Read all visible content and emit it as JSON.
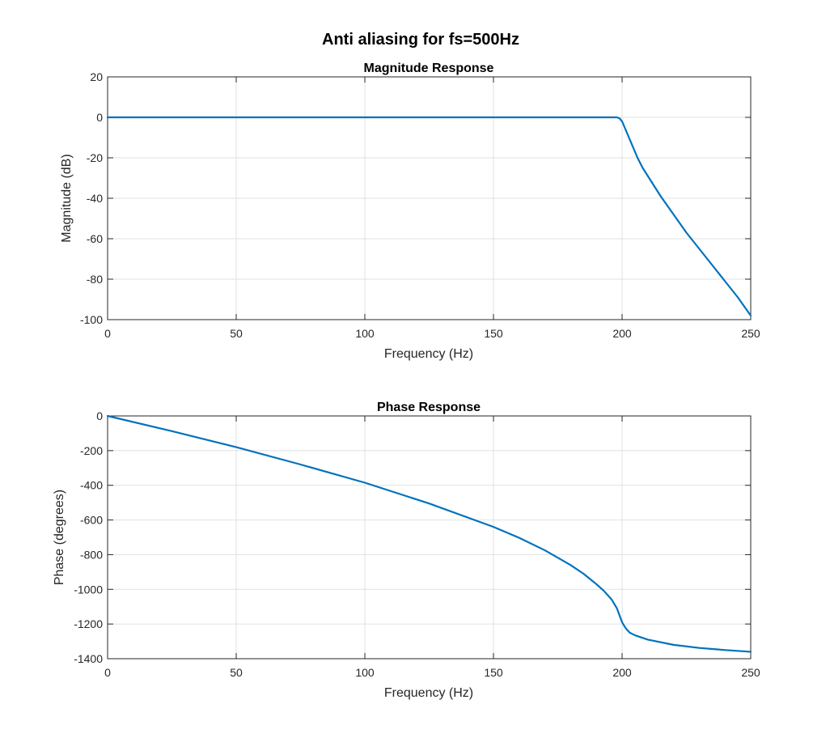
{
  "figure": {
    "title": "Anti aliasing for fs=500Hz"
  },
  "chart_data": [
    {
      "type": "line",
      "title": "Magnitude Response",
      "xlabel": "Frequency (Hz)",
      "ylabel": "Magnitude (dB)",
      "xlim": [
        0,
        250
      ],
      "ylim": [
        -100,
        20
      ],
      "xticks": [
        0,
        50,
        100,
        150,
        200,
        250
      ],
      "yticks": [
        20,
        0,
        -20,
        -40,
        -60,
        -80,
        -100
      ],
      "grid": true,
      "color": "#0072BD",
      "series": [
        {
          "x": [
            0,
            25,
            50,
            75,
            100,
            125,
            150,
            175,
            190,
            195,
            198,
            199,
            200,
            201,
            202,
            204,
            206,
            208,
            210,
            215,
            220,
            225,
            230,
            235,
            240,
            245,
            250
          ],
          "y": [
            0,
            0,
            0,
            0,
            0,
            0,
            0,
            0,
            0,
            0,
            0,
            -0.5,
            -2,
            -5,
            -8,
            -14,
            -20,
            -25,
            -29,
            -39,
            -48,
            -57,
            -65,
            -73,
            -81,
            -89,
            -98
          ]
        }
      ]
    },
    {
      "type": "line",
      "title": "Phase Response",
      "xlabel": "Frequency (Hz)",
      "ylabel": "Phase (degrees)",
      "xlim": [
        0,
        250
      ],
      "ylim": [
        -1400,
        0
      ],
      "xticks": [
        0,
        50,
        100,
        150,
        200,
        250
      ],
      "yticks": [
        0,
        -200,
        -400,
        -600,
        -800,
        -1000,
        -1200,
        -1400
      ],
      "grid": true,
      "color": "#0072BD",
      "series": [
        {
          "x": [
            0,
            25,
            50,
            75,
            100,
            125,
            150,
            160,
            170,
            180,
            185,
            190,
            193,
            196,
            198,
            200,
            201,
            202,
            203,
            205,
            210,
            220,
            230,
            240,
            250
          ],
          "y": [
            0,
            -88,
            -180,
            -280,
            -385,
            -505,
            -640,
            -703,
            -775,
            -860,
            -910,
            -970,
            -1010,
            -1060,
            -1110,
            -1190,
            -1215,
            -1235,
            -1250,
            -1265,
            -1290,
            -1320,
            -1338,
            -1350,
            -1360
          ]
        }
      ]
    }
  ]
}
